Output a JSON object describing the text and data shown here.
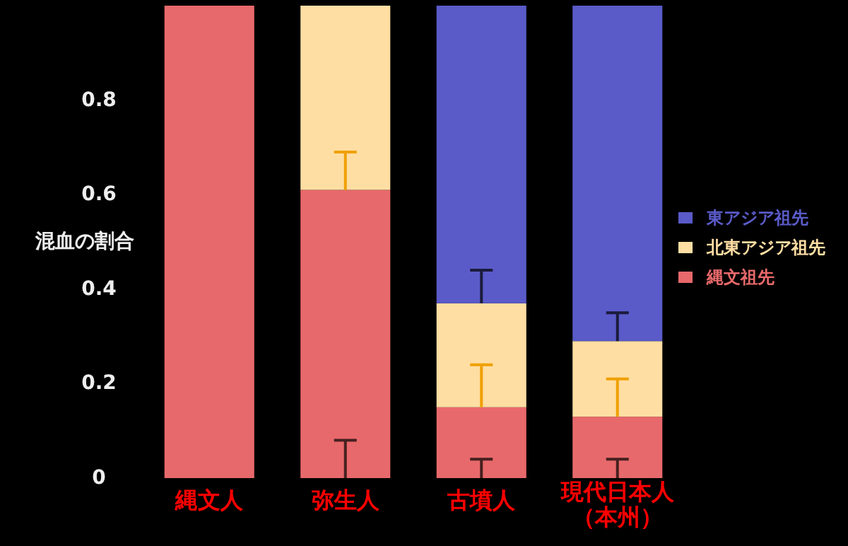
{
  "chart_data": {
    "type": "bar",
    "stacked": true,
    "ylabel": "混血の割合",
    "categories": [
      "縄文人",
      "弥生人",
      "古墳人",
      "現代日本人（本州）"
    ],
    "ylim": [
      0,
      1
    ],
    "yticks": [
      0,
      0.2,
      0.4,
      0.6,
      0.8
    ],
    "legend": "right",
    "grid": false,
    "series": [
      {
        "name": "縄文祖先",
        "color": "#e8696b",
        "values": [
          1,
          0.61,
          0.15,
          0.13
        ],
        "errors": [
          null,
          [
            0,
            0.08
          ],
          [
            0,
            0.04
          ],
          [
            0,
            0.04
          ]
        ]
      },
      {
        "name": "北東アジア祖先",
        "color": "#ffdea3",
        "values": [
          null,
          0.39,
          0.22,
          0.16
        ],
        "errors": [
          null,
          [
            0.61,
            0.69
          ],
          [
            0.15,
            0.24
          ],
          [
            0.13,
            0.21
          ]
        ]
      },
      {
        "name": "東アジア祖先",
        "color": "#5a5bc8",
        "values": [
          null,
          null,
          0.63,
          0.71
        ],
        "errors": [
          null,
          null,
          [
            0.37,
            0.44
          ],
          [
            0.29,
            0.35
          ]
        ]
      }
    ]
  }
}
